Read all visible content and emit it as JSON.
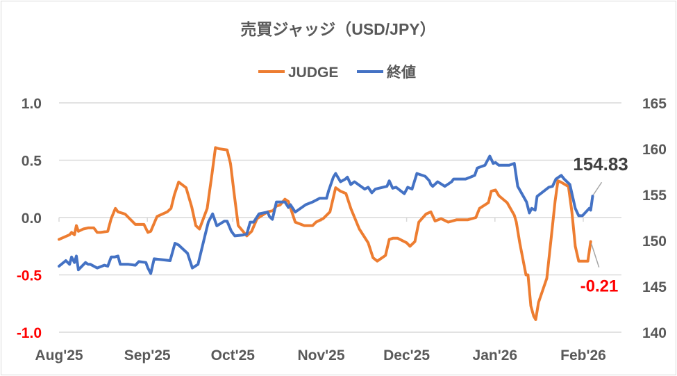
{
  "chart_data": {
    "type": "line",
    "title": "売買ジャッジ（USD/JPY）",
    "x_unit": "days since 2025-08-01",
    "x_ticks": [
      {
        "label": "Aug'25",
        "day": 0
      },
      {
        "label": "Sep'25",
        "day": 31
      },
      {
        "label": "Oct'25",
        "day": 61
      },
      {
        "label": "Nov'25",
        "day": 92
      },
      {
        "label": "Dec'25",
        "day": 122
      },
      {
        "label": "Jan'26",
        "day": 153
      },
      {
        "label": "Feb'26",
        "day": 184
      }
    ],
    "x_range": [
      0,
      197
    ],
    "y_left": {
      "range": [
        -1.0,
        1.0
      ],
      "ticks": [
        "1.0",
        "0.5",
        "0.0",
        "-0.5",
        "-1.0"
      ],
      "tick_values": [
        1.0,
        0.5,
        0.0,
        -0.5,
        -1.0
      ],
      "negative_color": "#ff0000"
    },
    "y_right": {
      "range": [
        140,
        165
      ],
      "ticks": [
        "165",
        "160",
        "155",
        "150",
        "145",
        "140"
      ],
      "tick_values": [
        165,
        160,
        155,
        150,
        145,
        140
      ]
    },
    "grid": true,
    "legend_position": "top",
    "series": [
      {
        "name": "JUDGE",
        "axis": "left",
        "color": "#ed7d31",
        "points": [
          [
            0,
            -0.19
          ],
          [
            3.7,
            -0.15
          ],
          [
            4.4,
            -0.13
          ],
          [
            5.4,
            -0.15
          ],
          [
            6.1,
            -0.07
          ],
          [
            6.8,
            -0.12
          ],
          [
            8.5,
            -0.1
          ],
          [
            10.2,
            -0.09
          ],
          [
            12.2,
            -0.09
          ],
          [
            13.4,
            -0.13
          ],
          [
            14.6,
            -0.13
          ],
          [
            17.1,
            -0.12
          ],
          [
            18.3,
            -0.01
          ],
          [
            19.8,
            0.08
          ],
          [
            20.7,
            0.05
          ],
          [
            23.2,
            0.03
          ],
          [
            24.4,
            0.0
          ],
          [
            26.8,
            -0.06
          ],
          [
            29.8,
            -0.06
          ],
          [
            31.2,
            -0.13
          ],
          [
            32.2,
            -0.12
          ],
          [
            34.4,
            0.01
          ],
          [
            38,
            0.05
          ],
          [
            39.3,
            0.08
          ],
          [
            40.5,
            0.2
          ],
          [
            42,
            0.31
          ],
          [
            44.6,
            0.26
          ],
          [
            46.6,
            0.09
          ],
          [
            48,
            -0.07
          ],
          [
            49.3,
            -0.1
          ],
          [
            52,
            0.08
          ],
          [
            53.7,
            0.38
          ],
          [
            54.9,
            0.61
          ],
          [
            56.1,
            0.6
          ],
          [
            59,
            0.59
          ],
          [
            60.2,
            0.47
          ],
          [
            61.5,
            0.2
          ],
          [
            62.9,
            -0.07
          ],
          [
            65.9,
            -0.16
          ],
          [
            67.6,
            -0.12
          ],
          [
            69.5,
            -0.01
          ],
          [
            73.2,
            0.05
          ],
          [
            75.1,
            0.06
          ],
          [
            76.3,
            0.1
          ],
          [
            77.6,
            0.11
          ],
          [
            79.3,
            0.16
          ],
          [
            80.5,
            0.14
          ],
          [
            82.9,
            -0.04
          ],
          [
            86.1,
            -0.07
          ],
          [
            89,
            -0.07
          ],
          [
            90.2,
            -0.04
          ],
          [
            92.7,
            -0.01
          ],
          [
            95.1,
            0.05
          ],
          [
            97.1,
            0.26
          ],
          [
            98.8,
            0.23
          ],
          [
            100.7,
            0.21
          ],
          [
            102.4,
            0.08
          ],
          [
            105.4,
            -0.1
          ],
          [
            108.5,
            -0.22
          ],
          [
            110.2,
            -0.35
          ],
          [
            111.7,
            -0.38
          ],
          [
            114.6,
            -0.33
          ],
          [
            115.9,
            -0.19
          ],
          [
            117.3,
            -0.18
          ],
          [
            118.8,
            -0.18
          ],
          [
            122,
            -0.22
          ],
          [
            123.2,
            -0.25
          ],
          [
            124.9,
            -0.21
          ],
          [
            126.3,
            -0.04
          ],
          [
            128.8,
            0.03
          ],
          [
            130.5,
            0.05
          ],
          [
            132,
            -0.03
          ],
          [
            134.1,
            -0.01
          ],
          [
            136.6,
            -0.04
          ],
          [
            139.5,
            -0.02
          ],
          [
            143.4,
            -0.02
          ],
          [
            146.3,
            0.0
          ],
          [
            147.6,
            0.08
          ],
          [
            150.7,
            0.13
          ],
          [
            151.7,
            0.23
          ],
          [
            153.2,
            0.24
          ],
          [
            154.4,
            0.19
          ],
          [
            157.3,
            0.13
          ],
          [
            159.8,
            0.02
          ],
          [
            160.5,
            -0.04
          ],
          [
            161.7,
            -0.22
          ],
          [
            163.9,
            -0.5
          ],
          [
            164.6,
            -0.5
          ],
          [
            165.6,
            -0.77
          ],
          [
            166.6,
            -0.86
          ],
          [
            167.3,
            -0.89
          ],
          [
            168.3,
            -0.74
          ],
          [
            171.2,
            -0.53
          ],
          [
            172.7,
            -0.19
          ],
          [
            174.1,
            0.14
          ],
          [
            175.1,
            0.32
          ],
          [
            176.1,
            0.31
          ],
          [
            178.8,
            0.27
          ],
          [
            180,
            0.05
          ],
          [
            181.2,
            -0.25
          ],
          [
            182.4,
            -0.38
          ],
          [
            185.6,
            -0.38
          ],
          [
            186.6,
            -0.21
          ]
        ]
      },
      {
        "name": "終値",
        "axis": "right",
        "color": "#4472c4",
        "points": [
          [
            0,
            147.2
          ],
          [
            2.4,
            147.8
          ],
          [
            3.7,
            147.4
          ],
          [
            4.4,
            148.2
          ],
          [
            5.4,
            147.6
          ],
          [
            6.1,
            148.3
          ],
          [
            6.8,
            146.8
          ],
          [
            9.3,
            147.6
          ],
          [
            10.2,
            147.4
          ],
          [
            11,
            147.4
          ],
          [
            13.4,
            147.0
          ],
          [
            15.9,
            147.3
          ],
          [
            17.1,
            147.2
          ],
          [
            18.3,
            148.2
          ],
          [
            19.5,
            148.2
          ],
          [
            20.7,
            148.3
          ],
          [
            21.5,
            147.4
          ],
          [
            24.4,
            147.4
          ],
          [
            26.8,
            147.3
          ],
          [
            28,
            147.7
          ],
          [
            30.5,
            147.6
          ],
          [
            31.2,
            147.0
          ],
          [
            32.2,
            146.4
          ],
          [
            33.4,
            148.0
          ],
          [
            39,
            147.8
          ],
          [
            40.7,
            149.7
          ],
          [
            42,
            149.5
          ],
          [
            45.1,
            148.6
          ],
          [
            46.8,
            147.0
          ],
          [
            48.8,
            147.4
          ],
          [
            51.2,
            150.5
          ],
          [
            52.4,
            152.0
          ],
          [
            53.9,
            152.9
          ],
          [
            55.4,
            151.6
          ],
          [
            58,
            152.1
          ],
          [
            59,
            152.1
          ],
          [
            60.5,
            151.0
          ],
          [
            61.7,
            150.5
          ],
          [
            64.6,
            150.6
          ],
          [
            65.9,
            150.7
          ],
          [
            67.1,
            152.0
          ],
          [
            68.3,
            152.0
          ],
          [
            70.2,
            152.9
          ],
          [
            73.2,
            153.1
          ],
          [
            73.9,
            152.6
          ],
          [
            74.9,
            152.3
          ],
          [
            76.3,
            154.2
          ],
          [
            79.3,
            154.2
          ],
          [
            80.5,
            153.6
          ],
          [
            81.2,
            153.9
          ],
          [
            82.9,
            153.1
          ],
          [
            86.6,
            153.9
          ],
          [
            89,
            154.2
          ],
          [
            91.5,
            154.6
          ],
          [
            93.9,
            154.6
          ],
          [
            94.6,
            155.4
          ],
          [
            96.3,
            156.9
          ],
          [
            97.1,
            157.3
          ],
          [
            98.8,
            156.4
          ],
          [
            100.5,
            156.7
          ],
          [
            101.2,
            156.9
          ],
          [
            102.4,
            156.1
          ],
          [
            103.7,
            156.4
          ],
          [
            107.3,
            155.6
          ],
          [
            108.5,
            155.8
          ],
          [
            109.8,
            155.2
          ],
          [
            111,
            155.6
          ],
          [
            115.1,
            155.9
          ],
          [
            115.9,
            156.5
          ],
          [
            117.1,
            155.7
          ],
          [
            118.3,
            155.8
          ],
          [
            121.2,
            155.1
          ],
          [
            122.4,
            155.8
          ],
          [
            123.9,
            155.6
          ],
          [
            125.6,
            157.3
          ],
          [
            128.5,
            157.0
          ],
          [
            130,
            156.5
          ],
          [
            130.5,
            156.1
          ],
          [
            131.2,
            155.9
          ],
          [
            132.9,
            156.4
          ],
          [
            135.4,
            155.9
          ],
          [
            137.8,
            156.4
          ],
          [
            138.5,
            156.7
          ],
          [
            142.7,
            156.7
          ],
          [
            144.4,
            156.9
          ],
          [
            145.9,
            157.1
          ],
          [
            146.8,
            157.9
          ],
          [
            149.5,
            158.2
          ],
          [
            151.2,
            159.2
          ],
          [
            152.4,
            158.4
          ],
          [
            153.2,
            158.5
          ],
          [
            154.4,
            158.2
          ],
          [
            158,
            158.2
          ],
          [
            159.8,
            158.4
          ],
          [
            161,
            155.9
          ],
          [
            164.1,
            154.2
          ],
          [
            165.1,
            153.0
          ],
          [
            165.9,
            153.5
          ],
          [
            167.1,
            153.3
          ],
          [
            167.8,
            154.8
          ],
          [
            171.9,
            155.8
          ],
          [
            173.2,
            155.9
          ],
          [
            174.4,
            156.7
          ],
          [
            176.3,
            157.1
          ],
          [
            177.3,
            156.7
          ],
          [
            179.3,
            156.1
          ],
          [
            181.2,
            153.5
          ],
          [
            182.4,
            152.7
          ],
          [
            183.7,
            152.7
          ],
          [
            186.1,
            153.5
          ],
          [
            186.6,
            153.3
          ],
          [
            187.3,
            154.83
          ]
        ]
      }
    ],
    "annotations": [
      {
        "series": "終値",
        "text": "154.83"
      },
      {
        "series": "JUDGE",
        "text": "-0.21"
      }
    ]
  }
}
